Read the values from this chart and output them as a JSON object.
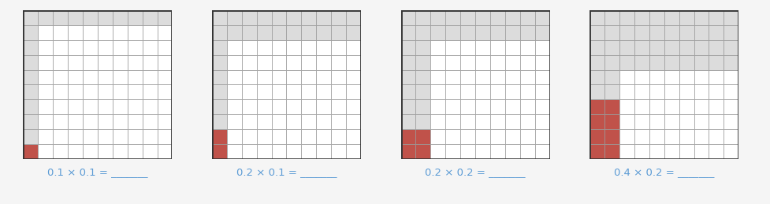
{
  "grids": [
    {
      "red_cols": 1,
      "red_rows": 1,
      "label": "0.1 × 0.1 = _______"
    },
    {
      "red_cols": 1,
      "red_rows": 2,
      "label": "0.2 × 0.1 = _______"
    },
    {
      "red_cols": 2,
      "red_rows": 2,
      "label": "0.2 × 0.2 = _______"
    },
    {
      "red_cols": 2,
      "red_rows": 4,
      "label": "0.4 × 0.2 = _______"
    }
  ],
  "grid_size": 10,
  "cell_color_light": "#dcdcdc",
  "cell_color_white": "#ffffff",
  "cell_color_red": "#c0524a",
  "grid_line_color": "#999999",
  "border_color": "#333333",
  "label_color": "#5b9bd5",
  "label_fontsize": 9.5,
  "background_color": "#f5f5f5",
  "fig_width": 9.78,
  "fig_height": 2.59
}
